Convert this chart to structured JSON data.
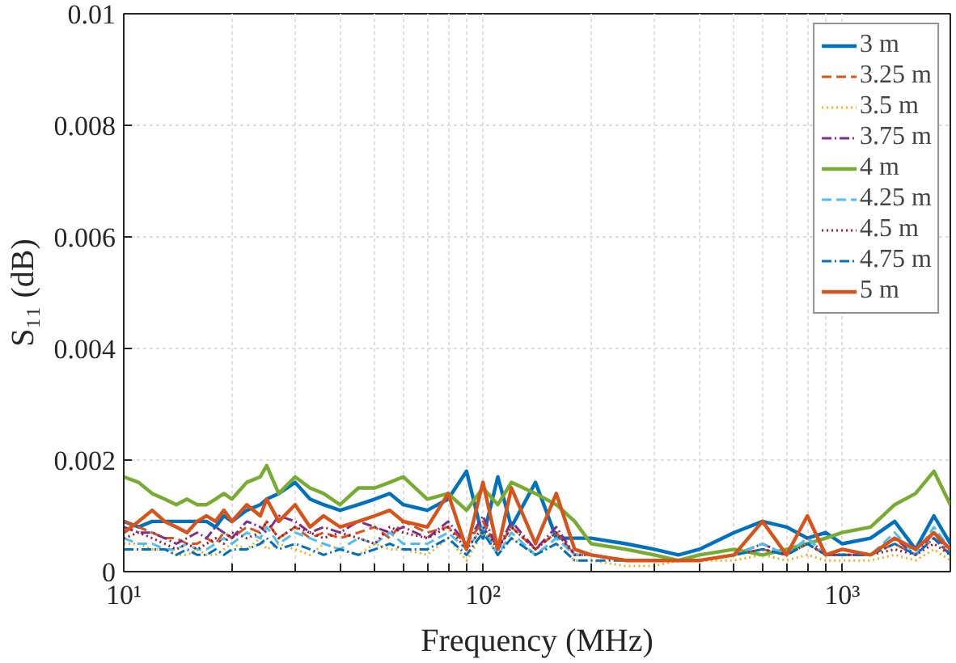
{
  "chart_data": {
    "type": "line",
    "xlabel": "Frequency (MHz)",
    "ylabel": "S₁₁ (dB)",
    "log": "x",
    "grid": true,
    "legend": "top right",
    "xlim": [
      10,
      2000
    ],
    "ylim": [
      0,
      0.01
    ],
    "xticks": [
      {
        "value": 10,
        "label": "10¹"
      },
      {
        "value": 20,
        "label": null
      },
      {
        "value": 30,
        "label": null
      },
      {
        "value": 40,
        "label": null
      },
      {
        "value": 50,
        "label": null
      },
      {
        "value": 60,
        "label": null
      },
      {
        "value": 70,
        "label": null
      },
      {
        "value": 80,
        "label": null
      },
      {
        "value": 90,
        "label": null
      },
      {
        "value": 100,
        "label": "10²"
      },
      {
        "value": 200,
        "label": null
      },
      {
        "value": 300,
        "label": null
      },
      {
        "value": 400,
        "label": null
      },
      {
        "value": 500,
        "label": null
      },
      {
        "value": 600,
        "label": null
      },
      {
        "value": 700,
        "label": null
      },
      {
        "value": 800,
        "label": null
      },
      {
        "value": 900,
        "label": null
      },
      {
        "value": 1000,
        "label": "10³"
      },
      {
        "value": 2000,
        "label": null
      }
    ],
    "yticks": [
      0,
      0.002,
      0.004,
      0.006,
      0.008,
      0.01
    ],
    "x": [
      10,
      11,
      12,
      13,
      14,
      15,
      16,
      17,
      18,
      19,
      20,
      22,
      24,
      25,
      27,
      30,
      33,
      36,
      40,
      45,
      50,
      55,
      60,
      70,
      80,
      90,
      100,
      110,
      120,
      140,
      160,
      180,
      200,
      250,
      300,
      350,
      400,
      500,
      600,
      700,
      800,
      900,
      1000,
      1200,
      1400,
      1600,
      1800,
      2000
    ],
    "series": [
      {
        "name": "3 m",
        "color": "#0072bd",
        "line_style": "solid",
        "values": [
          0.0009,
          0.0008,
          0.0009,
          0.0009,
          0.0009,
          0.0009,
          0.0009,
          0.0009,
          0.0008,
          0.001,
          0.0009,
          0.0011,
          0.0012,
          0.0013,
          0.0014,
          0.0016,
          0.0013,
          0.0012,
          0.0011,
          0.0012,
          0.0013,
          0.0014,
          0.0012,
          0.0011,
          0.0013,
          0.0018,
          0.0006,
          0.0017,
          0.0008,
          0.0016,
          0.0006,
          0.0006,
          0.0006,
          0.0005,
          0.0004,
          0.0003,
          0.0004,
          0.0007,
          0.0009,
          0.0008,
          0.0006,
          0.0007,
          0.0005,
          0.0006,
          0.0009,
          0.0004,
          0.001,
          0.0005
        ]
      },
      {
        "name": "3.25 m",
        "color": "#d95319",
        "line_style": "dashed",
        "values": [
          0.0009,
          0.0008,
          0.0007,
          0.0006,
          0.0006,
          0.0005,
          0.0005,
          0.0006,
          0.0005,
          0.0007,
          0.0006,
          0.0008,
          0.0007,
          0.0009,
          0.0006,
          0.0008,
          0.0006,
          0.0007,
          0.0006,
          0.0007,
          0.0008,
          0.0006,
          0.0009,
          0.0007,
          0.0008,
          0.0005,
          0.0009,
          0.0004,
          0.0008,
          0.0004,
          0.0007,
          0.0003,
          0.0003,
          0.0002,
          0.0002,
          0.0002,
          0.0002,
          0.0003,
          0.0004,
          0.0003,
          0.0005,
          0.0003,
          0.0003,
          0.0003,
          0.0005,
          0.0003,
          0.0006,
          0.0003
        ]
      },
      {
        "name": "3.5 m",
        "color": "#edb120",
        "line_style": "dotted",
        "values": [
          0.0005,
          0.0005,
          0.0004,
          0.0004,
          0.0003,
          0.0003,
          0.0004,
          0.0003,
          0.0003,
          0.0004,
          0.0005,
          0.0004,
          0.0006,
          0.0004,
          0.0005,
          0.0004,
          0.0003,
          0.0005,
          0.0004,
          0.0003,
          0.0005,
          0.0004,
          0.0004,
          0.0003,
          0.0006,
          0.0002,
          0.0007,
          0.0003,
          0.0006,
          0.0003,
          0.0005,
          0.0002,
          0.0002,
          0.0001,
          0.0001,
          0.0002,
          0.0002,
          0.0002,
          0.0003,
          0.0002,
          0.0003,
          0.0002,
          0.0002,
          0.0002,
          0.0003,
          0.0002,
          0.0004,
          0.0002
        ]
      },
      {
        "name": "3.75 m",
        "color": "#7e2f8e",
        "line_style": "dashdot",
        "values": [
          0.0008,
          0.0007,
          0.0007,
          0.0006,
          0.0005,
          0.0006,
          0.0007,
          0.0006,
          0.0008,
          0.0007,
          0.0006,
          0.0009,
          0.0008,
          0.0007,
          0.001,
          0.0009,
          0.0007,
          0.0008,
          0.0007,
          0.0009,
          0.0008,
          0.0007,
          0.0008,
          0.0006,
          0.0009,
          0.0005,
          0.001,
          0.0004,
          0.0009,
          0.0004,
          0.0008,
          0.0003,
          0.0003,
          0.0002,
          0.0002,
          0.0002,
          0.0002,
          0.0003,
          0.0005,
          0.0003,
          0.0006,
          0.0003,
          0.0003,
          0.0003,
          0.0006,
          0.0003,
          0.0007,
          0.0003
        ]
      },
      {
        "name": "4 m",
        "color": "#77ac30",
        "line_style": "solid",
        "values": [
          0.0017,
          0.0016,
          0.0014,
          0.0013,
          0.0012,
          0.0013,
          0.0012,
          0.0012,
          0.0013,
          0.0014,
          0.0013,
          0.0016,
          0.0017,
          0.0019,
          0.0014,
          0.0017,
          0.0015,
          0.0014,
          0.0012,
          0.0015,
          0.0015,
          0.0016,
          0.0017,
          0.0013,
          0.0014,
          0.0011,
          0.0015,
          0.0012,
          0.0016,
          0.0014,
          0.0012,
          0.0009,
          0.0005,
          0.0004,
          0.0003,
          0.0002,
          0.0003,
          0.0004,
          0.0003,
          0.0004,
          0.0005,
          0.0006,
          0.0007,
          0.0008,
          0.0012,
          0.0014,
          0.0018,
          0.0012
        ]
      },
      {
        "name": "4.25 m",
        "color": "#4dbeee",
        "line_style": "dashed",
        "values": [
          0.0006,
          0.0005,
          0.0005,
          0.0004,
          0.0004,
          0.0005,
          0.0004,
          0.0004,
          0.0005,
          0.0006,
          0.0005,
          0.0007,
          0.0006,
          0.0008,
          0.0005,
          0.0007,
          0.0006,
          0.0005,
          0.0004,
          0.0006,
          0.0005,
          0.0007,
          0.0005,
          0.0005,
          0.0007,
          0.0004,
          0.0008,
          0.0003,
          0.0007,
          0.0003,
          0.0006,
          0.0003,
          0.0003,
          0.0002,
          0.0002,
          0.0002,
          0.0002,
          0.0003,
          0.0005,
          0.0003,
          0.0006,
          0.0003,
          0.0004,
          0.0003,
          0.0007,
          0.0003,
          0.0008,
          0.0004
        ]
      },
      {
        "name": "4.5 m",
        "color": "#a2142f",
        "line_style": "dotted",
        "values": [
          0.0006,
          0.0007,
          0.0006,
          0.0005,
          0.0004,
          0.0005,
          0.0004,
          0.0005,
          0.0006,
          0.0005,
          0.0007,
          0.0006,
          0.0007,
          0.0009,
          0.0006,
          0.0008,
          0.0007,
          0.0006,
          0.0007,
          0.0006,
          0.0005,
          0.0008,
          0.0007,
          0.0006,
          0.0008,
          0.0004,
          0.0008,
          0.0004,
          0.0008,
          0.0004,
          0.0007,
          0.0003,
          0.0003,
          0.0002,
          0.0002,
          0.0002,
          0.0002,
          0.0003,
          0.0004,
          0.0003,
          0.0005,
          0.0003,
          0.0003,
          0.0003,
          0.0004,
          0.0003,
          0.0005,
          0.0003
        ]
      },
      {
        "name": "4.75 m",
        "color": "#0072bd",
        "line_style": "dashdot",
        "values": [
          0.0004,
          0.0004,
          0.0004,
          0.0004,
          0.0003,
          0.0004,
          0.0003,
          0.0003,
          0.0004,
          0.0003,
          0.0004,
          0.0004,
          0.0005,
          0.0006,
          0.0004,
          0.0005,
          0.0004,
          0.0003,
          0.0004,
          0.0003,
          0.0004,
          0.0005,
          0.0004,
          0.0004,
          0.0006,
          0.0003,
          0.0007,
          0.0003,
          0.0006,
          0.0003,
          0.0005,
          0.0002,
          0.0002,
          0.0002,
          0.0002,
          0.0002,
          0.0002,
          0.0003,
          0.0004,
          0.0003,
          0.0005,
          0.0003,
          0.0003,
          0.0003,
          0.0005,
          0.0003,
          0.0006,
          0.0003
        ]
      },
      {
        "name": "5 m",
        "color": "#d95319",
        "line_style": "solid",
        "values": [
          0.0007,
          0.0009,
          0.0011,
          0.0009,
          0.0008,
          0.0007,
          0.0009,
          0.001,
          0.0009,
          0.0011,
          0.0009,
          0.0012,
          0.001,
          0.0013,
          0.0009,
          0.0012,
          0.0008,
          0.001,
          0.0008,
          0.0009,
          0.001,
          0.0011,
          0.0009,
          0.0008,
          0.0014,
          0.0004,
          0.0016,
          0.0004,
          0.0015,
          0.0005,
          0.0014,
          0.0004,
          0.0003,
          0.0002,
          0.0002,
          0.0002,
          0.0002,
          0.0003,
          0.0009,
          0.0003,
          0.001,
          0.0003,
          0.0004,
          0.0003,
          0.0006,
          0.0004,
          0.0007,
          0.0004
        ]
      }
    ]
  }
}
